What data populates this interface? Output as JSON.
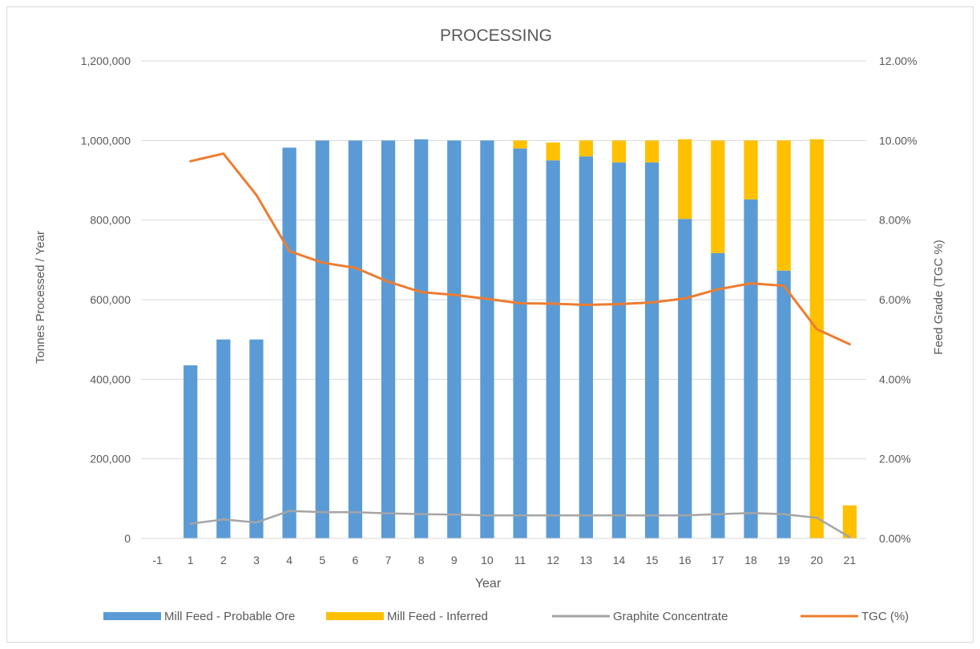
{
  "chart_data": {
    "type": "bar",
    "title": "PROCESSING",
    "xlabel": "Year",
    "ylabel": "Tonnes Processed / Year",
    "y2label": "Feed Grade (TGC %)",
    "ylim": [
      0,
      1200000
    ],
    "y2lim": [
      0,
      0.12
    ],
    "yticks": [
      "0",
      "200,000",
      "400,000",
      "600,000",
      "800,000",
      "1,000,000",
      "1,200,000"
    ],
    "y2ticks": [
      "0.00%",
      "2.00%",
      "4.00%",
      "6.00%",
      "8.00%",
      "10.00%",
      "12.00%"
    ],
    "grid": true,
    "stacked": true,
    "legend_position": "bottom",
    "categories": [
      "-1",
      "1",
      "2",
      "3",
      "4",
      "5",
      "6",
      "7",
      "8",
      "9",
      "10",
      "11",
      "12",
      "13",
      "14",
      "15",
      "16",
      "17",
      "18",
      "19",
      "20",
      "21"
    ],
    "series": [
      {
        "name": "Mill Feed - Probable Ore",
        "kind": "bar",
        "axis": "left",
        "color": "#5b9bd5",
        "values": [
          0,
          435000,
          500000,
          500000,
          982000,
          1000000,
          1000000,
          1000000,
          1003000,
          1000000,
          1000000,
          980000,
          950000,
          960000,
          945000,
          945000,
          803000,
          717000,
          852000,
          673000,
          0,
          0
        ]
      },
      {
        "name": "Mill Feed - Inferred",
        "kind": "bar",
        "axis": "left",
        "color": "#ffc000",
        "values": [
          0,
          0,
          0,
          0,
          0,
          0,
          0,
          0,
          0,
          0,
          0,
          20000,
          45000,
          40000,
          55000,
          55000,
          200000,
          283000,
          148000,
          327000,
          1003000,
          83000
        ]
      },
      {
        "name": "Graphite Concentrate",
        "kind": "line",
        "axis": "left",
        "color": "#a5a5a5",
        "values": [
          null,
          37000,
          48000,
          40000,
          69000,
          66000,
          66000,
          63000,
          61000,
          60000,
          58000,
          58000,
          58000,
          58000,
          58000,
          58000,
          58000,
          61000,
          64000,
          61000,
          52000,
          3000
        ]
      },
      {
        "name": "TGC (%)",
        "kind": "line",
        "axis": "right",
        "color": "#ed7d31",
        "values": [
          null,
          0.0948,
          0.0967,
          0.0863,
          0.0722,
          0.0693,
          0.068,
          0.0645,
          0.0619,
          0.0612,
          0.0602,
          0.0591,
          0.059,
          0.0587,
          0.0589,
          0.0593,
          0.0603,
          0.0626,
          0.0641,
          0.0635,
          0.0526,
          0.0488
        ]
      }
    ]
  }
}
